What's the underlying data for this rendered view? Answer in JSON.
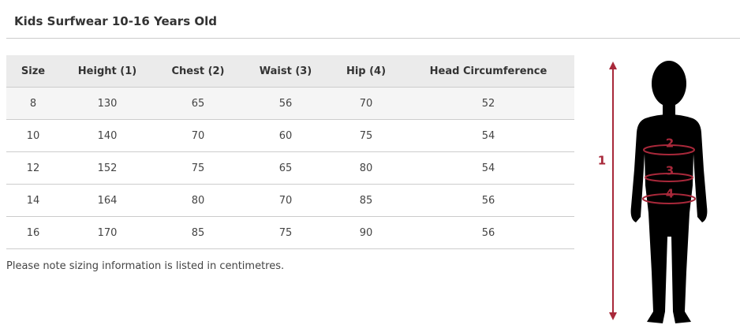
{
  "header": {
    "title": "Kids Surfwear 10-16 Years Old"
  },
  "table": {
    "columns": [
      "Size",
      "Height (1)",
      "Chest (2)",
      "Waist (3)",
      "Hip (4)",
      "Head Circumference"
    ],
    "rows": [
      [
        8,
        130,
        65,
        56,
        70,
        52
      ],
      [
        10,
        140,
        70,
        60,
        75,
        54
      ],
      [
        12,
        152,
        75,
        65,
        80,
        54
      ],
      [
        14,
        164,
        80,
        70,
        85,
        56
      ],
      [
        16,
        170,
        85,
        75,
        90,
        56
      ]
    ]
  },
  "note": "Please note sizing information is listed in centimetres.",
  "figure": {
    "labels": [
      "1",
      "2",
      "3",
      "4"
    ]
  }
}
